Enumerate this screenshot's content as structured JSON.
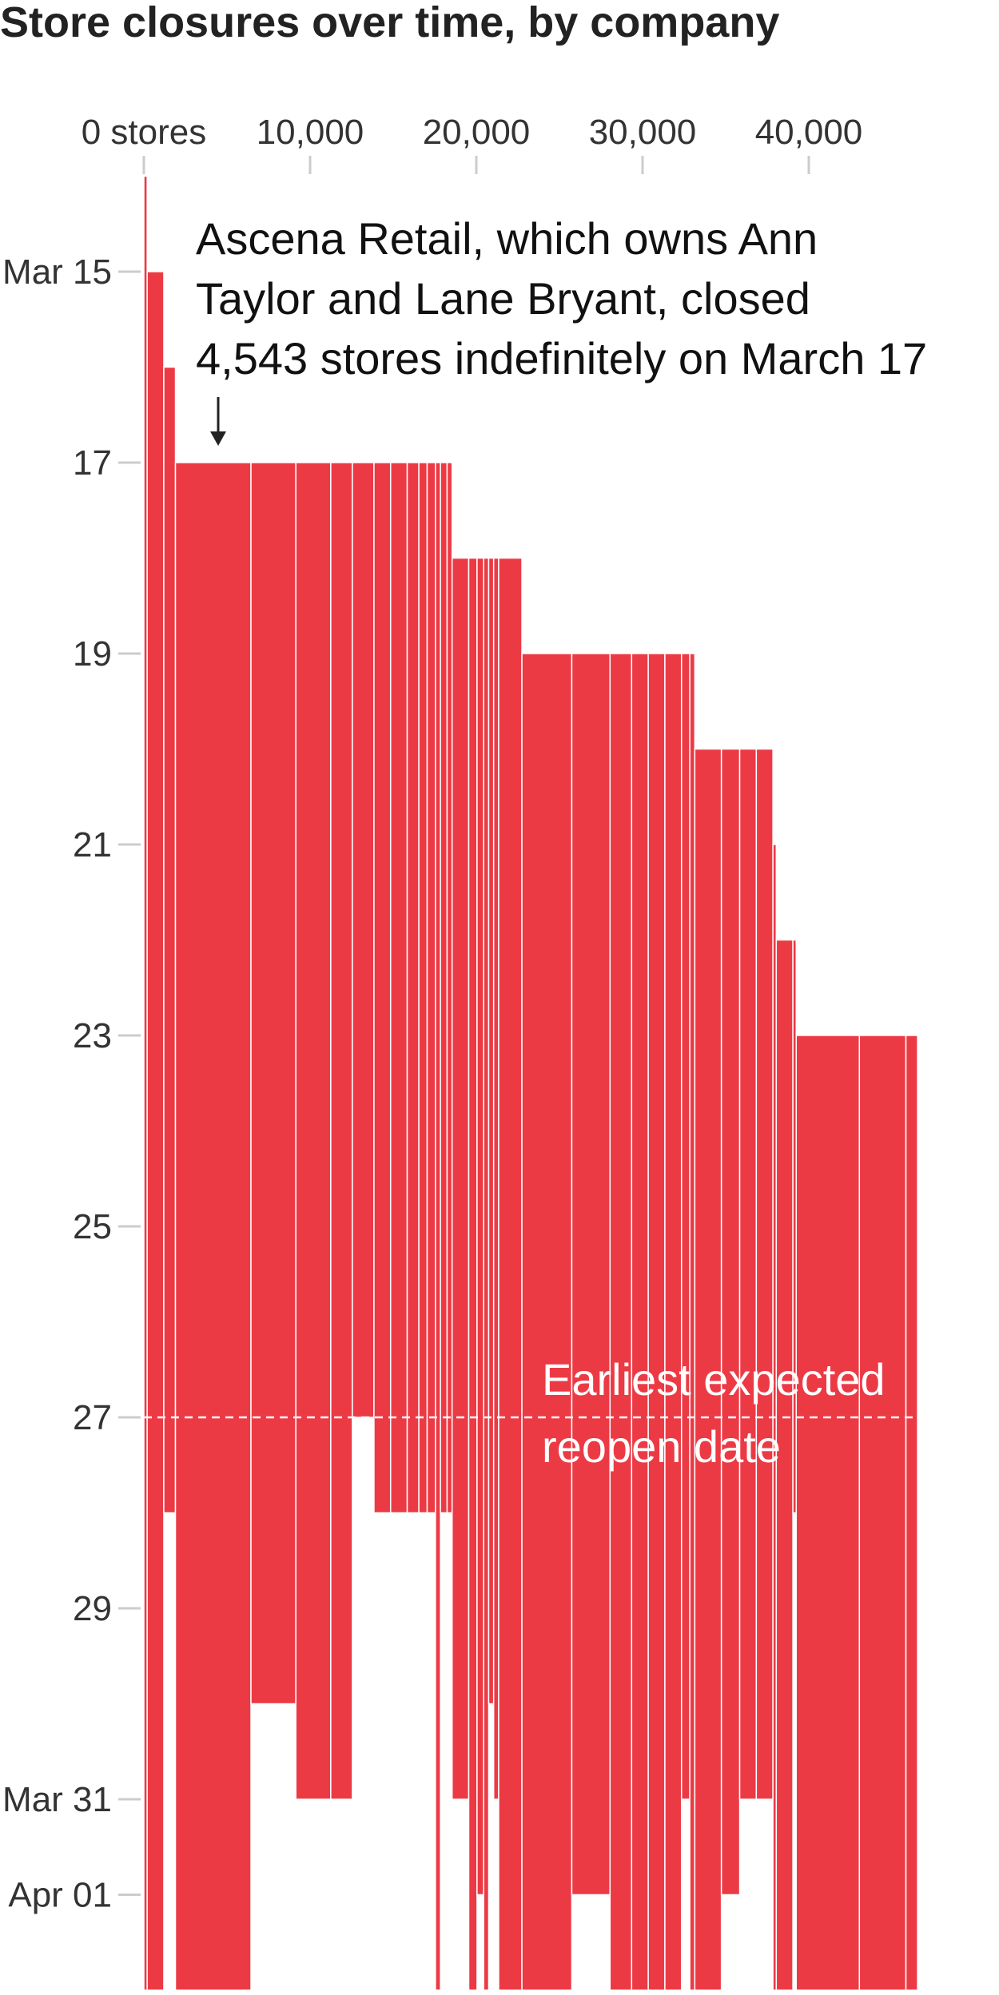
{
  "chart_data": {
    "type": "bar",
    "orientation": "floating-vertical",
    "title": "Store closures over time, by company",
    "x_axis": {
      "tick_labels": [
        "0 stores",
        "10,000",
        "20,000",
        "30,000",
        "40,000"
      ],
      "tick_values": [
        0,
        10000,
        20000,
        30000,
        40000
      ],
      "range": [
        0,
        49000
      ]
    },
    "y_axis": {
      "tick_labels": [
        "Mar 15",
        "17",
        "19",
        "21",
        "23",
        "25",
        "27",
        "29",
        "Mar 31",
        "Apr 01"
      ],
      "tick_values": [
        15,
        17,
        19,
        21,
        23,
        25,
        27,
        29,
        31,
        32
      ],
      "range": [
        13,
        33
      ]
    },
    "bar_color": "#ec3a45",
    "series": [
      {
        "stores": 200,
        "closed": 14,
        "reopen": 33
      },
      {
        "stores": 1000,
        "closed": 15,
        "reopen": 33
      },
      {
        "stores": 700,
        "closed": 16,
        "reopen": 28
      },
      {
        "stores": 4543,
        "closed": 17,
        "reopen": 33
      },
      {
        "stores": 2700,
        "closed": 17,
        "reopen": 30
      },
      {
        "stores": 2100,
        "closed": 17,
        "reopen": 31
      },
      {
        "stores": 1300,
        "closed": 17,
        "reopen": 31
      },
      {
        "stores": 1300,
        "closed": 17,
        "reopen": 27
      },
      {
        "stores": 1000,
        "closed": 17,
        "reopen": 28
      },
      {
        "stores": 1000,
        "closed": 17,
        "reopen": 28
      },
      {
        "stores": 700,
        "closed": 17,
        "reopen": 28
      },
      {
        "stores": 500,
        "closed": 17,
        "reopen": 28
      },
      {
        "stores": 500,
        "closed": 17,
        "reopen": 28
      },
      {
        "stores": 300,
        "closed": 17,
        "reopen": 33
      },
      {
        "stores": 400,
        "closed": 17,
        "reopen": 28
      },
      {
        "stores": 300,
        "closed": 17,
        "reopen": 28
      },
      {
        "stores": 1000,
        "closed": 18,
        "reopen": 31
      },
      {
        "stores": 500,
        "closed": 18,
        "reopen": 33
      },
      {
        "stores": 400,
        "closed": 18,
        "reopen": 32
      },
      {
        "stores": 300,
        "closed": 18,
        "reopen": 33
      },
      {
        "stores": 300,
        "closed": 18,
        "reopen": 30
      },
      {
        "stores": 300,
        "closed": 18,
        "reopen": 31
      },
      {
        "stores": 1400,
        "closed": 18,
        "reopen": 33
      },
      {
        "stores": 3000,
        "closed": 19,
        "reopen": 33
      },
      {
        "stores": 2300,
        "closed": 19,
        "reopen": 32
      },
      {
        "stores": 1300,
        "closed": 19,
        "reopen": 33
      },
      {
        "stores": 1000,
        "closed": 19,
        "reopen": 33
      },
      {
        "stores": 1000,
        "closed": 19,
        "reopen": 33
      },
      {
        "stores": 1000,
        "closed": 19,
        "reopen": 33
      },
      {
        "stores": 500,
        "closed": 19,
        "reopen": 31
      },
      {
        "stores": 300,
        "closed": 19,
        "reopen": 33
      },
      {
        "stores": 1600,
        "closed": 20,
        "reopen": 33
      },
      {
        "stores": 1100,
        "closed": 20,
        "reopen": 32
      },
      {
        "stores": 1000,
        "closed": 20,
        "reopen": 31
      },
      {
        "stores": 1000,
        "closed": 20,
        "reopen": 31
      },
      {
        "stores": 200,
        "closed": 21,
        "reopen": 33
      },
      {
        "stores": 1000,
        "closed": 22,
        "reopen": 33
      },
      {
        "stores": 200,
        "closed": 22,
        "reopen": 28
      },
      {
        "stores": 3800,
        "closed": 23,
        "reopen": 33
      },
      {
        "stores": 2800,
        "closed": 23,
        "reopen": 33
      },
      {
        "stores": 700,
        "closed": 23,
        "reopen": 33
      }
    ],
    "annotation": "Ascena Retail, which owns Ann Taylor and Lane Bryant, closed 4,543 stores indefinitely on March 17",
    "annotation_lines": [
      "Ascena Retail, which owns Ann",
      "Taylor and Lane Bryant, closed",
      "4,543 stores indefinitely on March 17"
    ],
    "reference_line": {
      "y": 27,
      "label_lines": [
        "Earliest expected",
        "reopen date"
      ]
    }
  }
}
